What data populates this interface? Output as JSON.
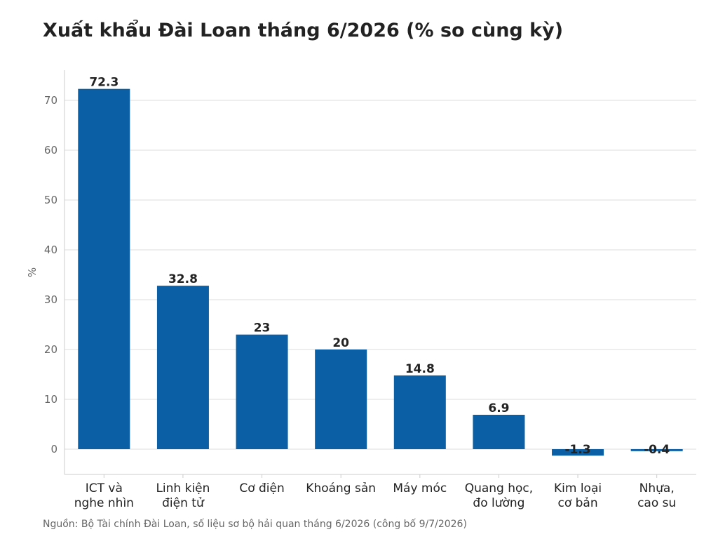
{
  "colors": {
    "bar": "#0b5fa5",
    "grid": "#dddddd",
    "axis": "#cccccc",
    "text": "#222222",
    "muted": "#666666"
  },
  "chart_data": {
    "type": "bar",
    "title": "Xuất khẩu Đài Loan tháng 6/2026 (% so cùng kỳ)",
    "ylabel": "%",
    "xlabel": "",
    "categories": [
      [
        "ICT và",
        "nghe nhìn"
      ],
      [
        "Linh kiện",
        "điện tử"
      ],
      [
        "Cơ điện"
      ],
      [
        "Khoáng sản"
      ],
      [
        "Máy móc"
      ],
      [
        "Quang học,",
        "đo lường"
      ],
      [
        "Kim loại",
        "cơ bản"
      ],
      [
        "Nhựa,",
        "cao su"
      ]
    ],
    "values": [
      72.3,
      32.8,
      23,
      20,
      14.8,
      6.9,
      -1.3,
      -0.4
    ],
    "value_labels": [
      "72.3",
      "32.8",
      "23",
      "20",
      "14.8",
      "6.9",
      "-1.3",
      "-0.4"
    ],
    "yticks": [
      0,
      10,
      20,
      30,
      40,
      50,
      60,
      70
    ],
    "ylim": [
      -5,
      76
    ],
    "grid": true
  },
  "source": "Nguồn: Bộ Tài chính Đài Loan, số liệu sơ bộ hải quan tháng 6/2026 (công bố 9/7/2026)"
}
